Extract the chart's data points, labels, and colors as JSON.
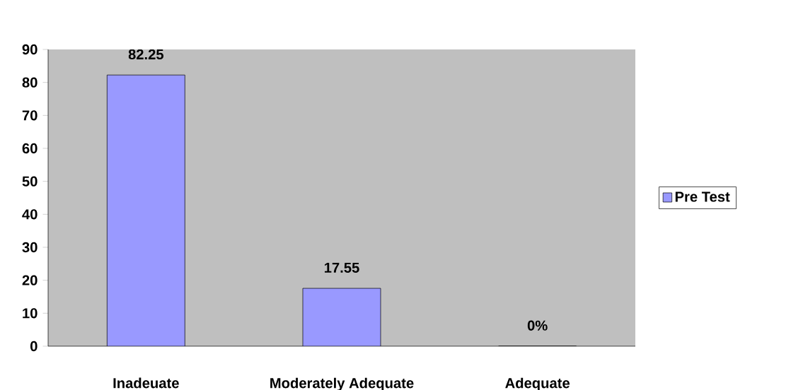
{
  "chart_data": {
    "type": "bar",
    "categories": [
      "Inadeuate",
      "Moderately Adequate",
      "Adequate"
    ],
    "series": [
      {
        "name": "Pre Test",
        "color": "#9999ff",
        "values": [
          82.25,
          17.55,
          0
        ],
        "value_labels": [
          "82.25",
          "17.55",
          "0%"
        ]
      }
    ],
    "ylim": [
      0,
      90
    ],
    "yticks": [
      0,
      10,
      20,
      30,
      40,
      50,
      60,
      70,
      80,
      90
    ],
    "legend": "right"
  }
}
